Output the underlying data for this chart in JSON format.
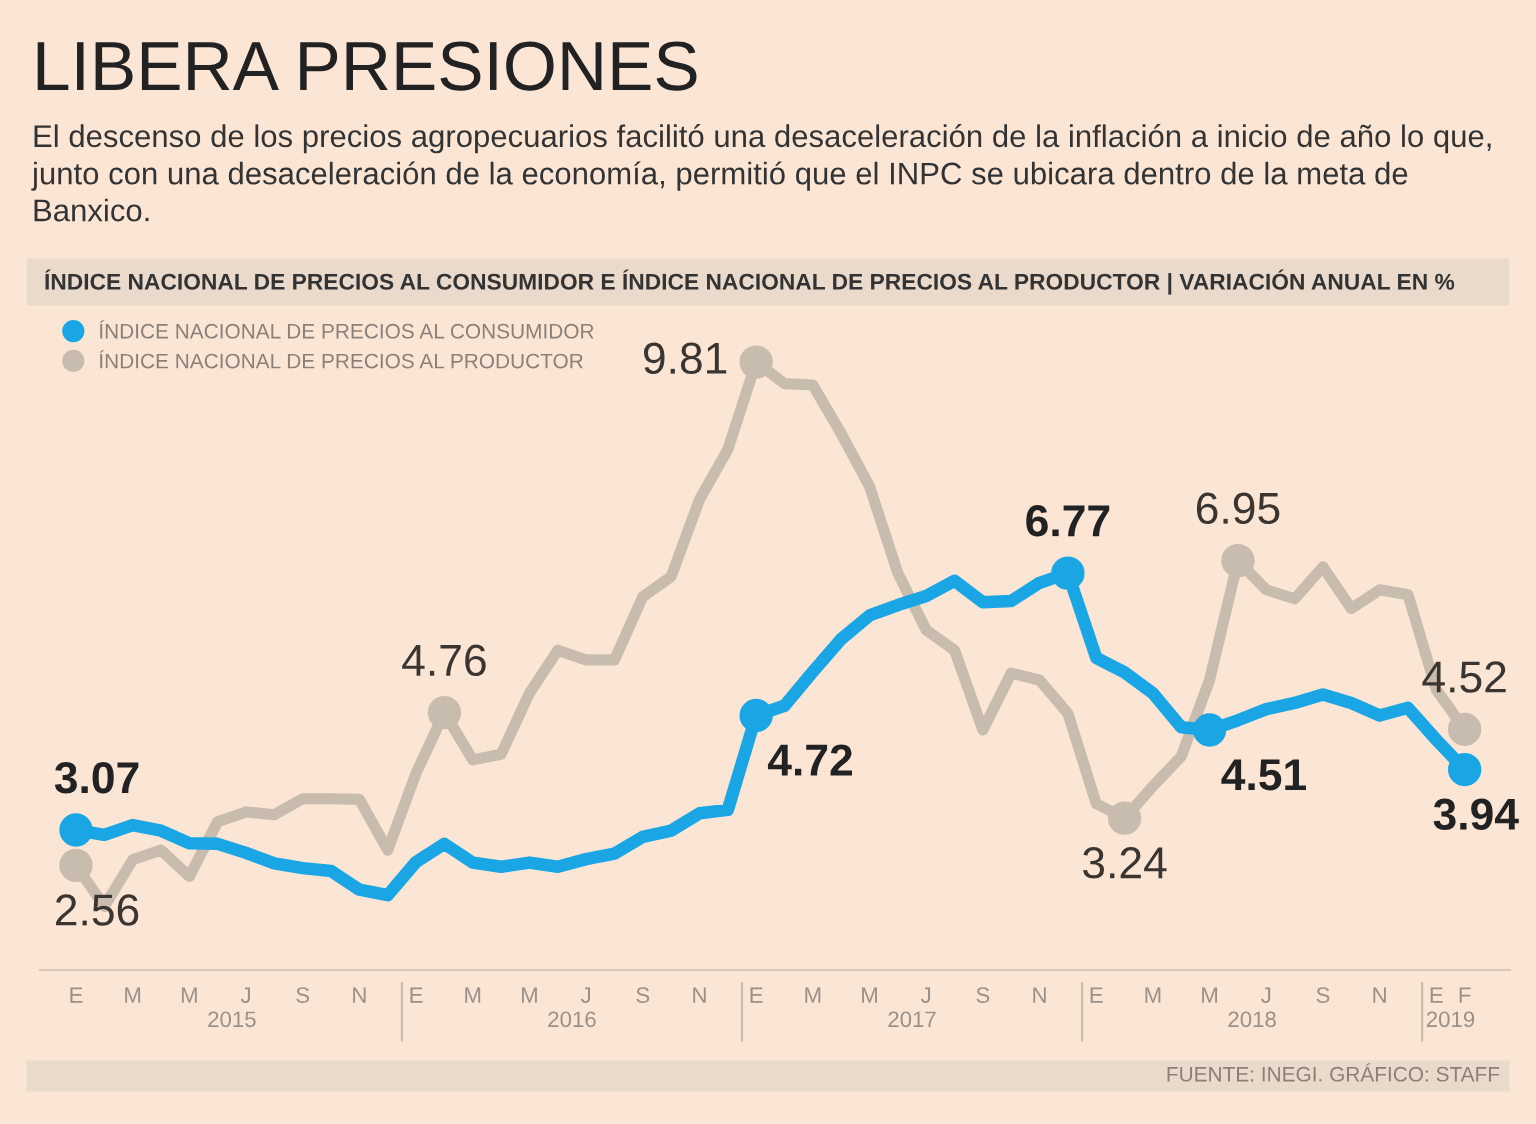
{
  "chart_data": {
    "type": "line",
    "title": "LIBERA PRESIONES",
    "subtitle": "El descenso de los precios agropecuarios facilitó una desaceleración de la inflación a inicio de año lo que, junto con una desaceleración de la economía, permitió que el INPC se ubicara dentro de la meta de Banxico.",
    "categories": [
      "E",
      null,
      "M",
      null,
      "M",
      null,
      "J",
      null,
      "S",
      null,
      "N",
      null,
      "E",
      null,
      "M",
      null,
      "M",
      null,
      "J",
      null,
      "S",
      null,
      "N",
      null,
      "E",
      null,
      "M",
      null,
      "M",
      null,
      "J",
      null,
      "S",
      null,
      "N",
      null,
      "E",
      null,
      "M",
      null,
      "M",
      null,
      "J",
      null,
      "S",
      null,
      "N",
      null,
      "E",
      "F"
    ],
    "series": [
      {
        "name": "ÍNDICE NACIONAL DE PRECIOS AL CONSUMIDOR",
        "color": "#1aa6e4",
        "values": [
          3.07,
          3.0,
          3.14,
          3.06,
          2.88,
          2.87,
          2.74,
          2.59,
          2.52,
          2.48,
          2.21,
          2.13,
          2.61,
          2.87,
          2.6,
          2.54,
          2.6,
          2.54,
          2.65,
          2.73,
          2.97,
          3.06,
          3.31,
          3.36,
          4.72,
          4.86,
          5.35,
          5.82,
          6.16,
          6.31,
          6.44,
          6.66,
          6.35,
          6.37,
          6.63,
          6.77,
          5.55,
          5.34,
          5.04,
          4.55,
          4.51,
          4.65,
          4.81,
          4.9,
          5.02,
          4.9,
          4.72,
          4.83,
          4.37,
          3.94
        ],
        "value_labels": [
          "3.07",
          null,
          null,
          null,
          null,
          null,
          null,
          null,
          null,
          null,
          null,
          null,
          null,
          null,
          null,
          null,
          null,
          null,
          null,
          null,
          null,
          null,
          null,
          null,
          "4.72",
          null,
          null,
          null,
          null,
          null,
          null,
          null,
          null,
          null,
          null,
          "6.77",
          null,
          null,
          null,
          null,
          "4.51",
          null,
          null,
          null,
          null,
          null,
          null,
          null,
          null,
          "3.94"
        ]
      },
      {
        "name": "ÍNDICE NACIONAL DE PRECIOS AL PRODUCTOR",
        "color": "#c8bcae",
        "values": [
          2.56,
          1.97,
          2.64,
          2.78,
          2.4,
          3.19,
          3.33,
          3.29,
          3.52,
          3.52,
          3.51,
          2.78,
          3.89,
          4.76,
          4.08,
          4.16,
          5.04,
          5.66,
          5.52,
          5.52,
          6.43,
          6.72,
          7.83,
          8.55,
          9.81,
          9.5,
          9.48,
          8.78,
          8.02,
          6.77,
          5.95,
          5.66,
          4.51,
          5.33,
          5.23,
          4.75,
          3.45,
          3.24,
          3.7,
          4.13,
          5.23,
          6.95,
          6.53,
          6.4,
          6.86,
          6.26,
          6.53,
          6.46,
          5.09,
          4.52
        ],
        "value_labels": [
          "2.56",
          null,
          null,
          null,
          null,
          null,
          null,
          null,
          null,
          null,
          null,
          null,
          null,
          "4.76",
          null,
          null,
          null,
          null,
          null,
          null,
          null,
          null,
          null,
          null,
          "9.81",
          null,
          null,
          null,
          null,
          null,
          null,
          null,
          null,
          null,
          null,
          null,
          null,
          "3.24",
          null,
          null,
          null,
          "6.95",
          null,
          null,
          null,
          null,
          null,
          null,
          null,
          "4.52"
        ]
      }
    ],
    "annotations": [
      "ÍNDICE NACIONAL DE PRECIOS AL CONSUMIDOR E ÍNDICE NACIONAL DE PRECIOS AL PRODUCTOR | VARIACIÓN ANUAL EN %",
      "2015",
      "2016",
      "2017",
      "2018",
      "2019",
      "FUENTE: INEGI. GRÁFICO: STAFF"
    ],
    "legend": "top left",
    "marker": "none",
    "line_style": "solid",
    "grid": false,
    "tick_labels": "x"
  }
}
